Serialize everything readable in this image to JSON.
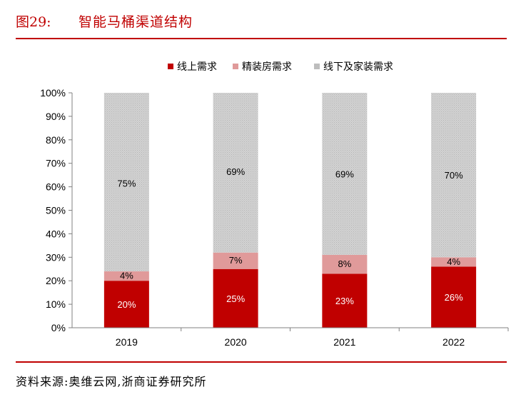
{
  "figure": {
    "number": "图29:",
    "title": "智能马桶渠道结构",
    "source": "资料来源:奥维云网,浙商证券研究所"
  },
  "chart_data": {
    "type": "bar",
    "stacked": true,
    "categories": [
      "2019",
      "2020",
      "2021",
      "2022"
    ],
    "series": [
      {
        "name": "线上需求",
        "values": [
          20,
          25,
          23,
          26
        ],
        "labels": [
          "20%",
          "25%",
          "23%",
          "26%"
        ],
        "color": "#c00000"
      },
      {
        "name": "精装房需求",
        "values": [
          4,
          7,
          8,
          4
        ],
        "labels": [
          "4%",
          "7%",
          "8%",
          "4%"
        ],
        "color": "#e09a9a"
      },
      {
        "name": "线下及家装需求",
        "values": [
          75,
          69,
          69,
          70
        ],
        "labels": [
          "75%",
          "69%",
          "69%",
          "70%"
        ],
        "color": "#c8c8c8"
      }
    ],
    "yticks": [
      "0%",
      "10%",
      "20%",
      "30%",
      "40%",
      "50%",
      "60%",
      "70%",
      "80%",
      "90%",
      "100%"
    ],
    "ylim": [
      0,
      100
    ],
    "legend_position": "top",
    "grid": false
  }
}
